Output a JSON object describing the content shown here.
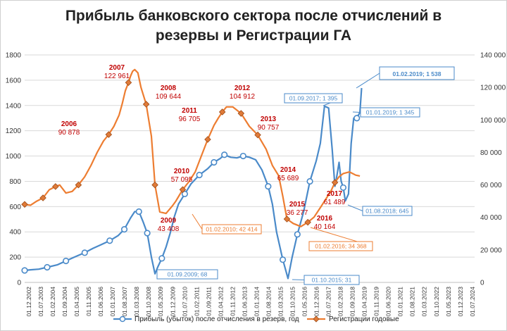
{
  "chart_data": {
    "type": "line",
    "title_line1": "Прибыль банковского сектора после отчислений в",
    "title_line2": "резервы и Регистрации ГА",
    "y_left": {
      "min": 0,
      "max": 1800,
      "step": 200,
      "ticks": [
        "0",
        "200",
        "400",
        "600",
        "800",
        "1000",
        "1200",
        "1400",
        "1600",
        "1800"
      ]
    },
    "y_right": {
      "min": 0,
      "max": 140000,
      "step": 20000,
      "ticks": [
        "0",
        "20 000",
        "40 000",
        "60 000",
        "80 000",
        "100 000",
        "120 000",
        "140 000"
      ]
    },
    "x_labels": [
      "01.12.2002",
      "01.07.2003",
      "01.02.2004",
      "01.09.2004",
      "01.04.2005",
      "01.11.2005",
      "01.06.2006",
      "01.01.2007",
      "01.08.2007",
      "01.03.2008",
      "01.10.2008",
      "01.05.2009",
      "01.12.2009",
      "01.07.2010",
      "01.02.2011",
      "01.09.2011",
      "01.04.2012",
      "01.11.2012",
      "01.06.2013",
      "01.01.2014",
      "01.08.2014",
      "01.03.2015",
      "01.10.2015",
      "01.05.2016",
      "01.12.2016",
      "01.07.2017",
      "01.02.2018",
      "01.09.2018",
      "01.04.2019",
      "01.11.2019",
      "01.06.2020",
      "01.01.2021",
      "01.08.2021",
      "01.03.2022",
      "01.10.2022",
      "01.05.2023",
      "01.12.2023",
      "01.07.2024"
    ],
    "x_range": [
      2002.92,
      2024.5
    ],
    "series": [
      {
        "name": "Прибыль (убыток) после отчисления в резерв, год",
        "axis": "left",
        "color": "#4a8ac9",
        "x": [
          2002.92,
          2003.2,
          2003.6,
          2004.0,
          2004.5,
          2004.9,
          2005.3,
          2005.8,
          2006.2,
          2006.6,
          2007.0,
          2007.4,
          2007.7,
          2008.0,
          2008.2,
          2008.4,
          2008.6,
          2008.8,
          2009.0,
          2009.17,
          2009.3,
          2009.5,
          2009.7,
          2009.9,
          2010.1,
          2010.3,
          2010.6,
          2010.9,
          2011.3,
          2011.7,
          2012.0,
          2012.3,
          2012.5,
          2012.8,
          2013.1,
          2013.4,
          2013.7,
          2014.0,
          2014.3,
          2014.6,
          2014.8,
          2015.0,
          2015.3,
          2015.55,
          2015.75,
          2016.0,
          2016.3,
          2016.6,
          2016.9,
          2017.1,
          2017.3,
          2017.5,
          2017.67,
          2017.8,
          2017.9,
          2018.0,
          2018.1,
          2018.2,
          2018.3,
          2018.45,
          2018.58,
          2018.7,
          2018.85,
          2019.0,
          2019.08
        ],
        "y": [
          95,
          100,
          105,
          120,
          140,
          170,
          200,
          235,
          270,
          300,
          330,
          370,
          420,
          510,
          560,
          560,
          480,
          390,
          200,
          68,
          120,
          190,
          280,
          390,
          520,
          620,
          700,
          780,
          850,
          900,
          950,
          980,
          1010,
          990,
          985,
          1000,
          990,
          970,
          890,
          760,
          620,
          400,
          180,
          31,
          200,
          380,
          560,
          800,
          960,
          1100,
          1395,
          1380,
          1050,
          760,
          850,
          950,
          800,
          750,
          645,
          700,
          1100,
          1300,
          1300,
          1345,
          1538
        ]
      },
      {
        "name": "Регистрации годовые",
        "axis": "right",
        "color": "#ed7d31",
        "x": [
          2002.92,
          2003.2,
          2003.5,
          2003.8,
          2004.1,
          2004.4,
          2004.6,
          2004.9,
          2005.2,
          2005.5,
          2005.8,
          2006.1,
          2006.4,
          2006.7,
          2006.95,
          2007.2,
          2007.45,
          2007.6,
          2007.75,
          2007.9,
          2008.0,
          2008.1,
          2008.2,
          2008.35,
          2008.5,
          2008.75,
          2009.0,
          2009.17,
          2009.4,
          2009.7,
          2010.0,
          2010.17,
          2010.5,
          2010.8,
          2011.1,
          2011.4,
          2011.7,
          2012.0,
          2012.2,
          2012.4,
          2012.6,
          2012.9,
          2013.3,
          2013.7,
          2014.1,
          2014.5,
          2014.8,
          2015.1,
          2015.3,
          2015.5,
          2015.8,
          2016.17,
          2016.5,
          2016.8,
          2017.1,
          2017.4,
          2017.6,
          2017.8,
          2018.0,
          2018.2,
          2018.5,
          2018.8,
          2019.0
        ],
        "y": [
          48000,
          47500,
          50000,
          52000,
          57000,
          59000,
          60000,
          55000,
          56000,
          60000,
          65000,
          72000,
          80000,
          87000,
          91000,
          96000,
          103000,
          110000,
          118000,
          123000,
          127000,
          130000,
          131000,
          129000,
          120000,
          109644,
          90000,
          60000,
          43408,
          42414,
          47000,
          50000,
          57095,
          62000,
          68000,
          78000,
          88000,
          96705,
          101000,
          104912,
          108000,
          108000,
          104000,
          96000,
          90757,
          82000,
          72000,
          65689,
          53000,
          39000,
          36277,
          34368,
          37000,
          40164,
          46000,
          52000,
          56000,
          61489,
          65000,
          67000,
          68000,
          66000,
          65500
        ]
      }
    ],
    "year_labels": [
      {
        "year": "2006",
        "value": "90 878",
        "x": 2005.4
      },
      {
        "year": "2007",
        "value": "122 961",
        "x": 2007.1
      },
      {
        "year": "2008",
        "value": "109 644",
        "x": 2009.0
      },
      {
        "year": "2009",
        "value": "43 408",
        "x": 2009.4
      },
      {
        "year": "2010",
        "value": "57 095",
        "x": 2010.1
      },
      {
        "year": "2011",
        "value": "96 705",
        "x": 2011.2
      },
      {
        "year": "2012",
        "value": "104 912",
        "x": 2013.5
      },
      {
        "year": "2013",
        "value": "90 757",
        "x": 2015.1
      },
      {
        "year": "2014",
        "value": "65 689",
        "x": 2016.2
      },
      {
        "year": "2015",
        "value": "36 277",
        "x": 2016.2
      },
      {
        "year": "2016",
        "value": "40 164",
        "x": 2017.4
      },
      {
        "year": "2017",
        "value": "61 489",
        "x": 2018.4
      }
    ],
    "callouts": [
      {
        "text": "01.09.2009; 68",
        "color": "#4a8ac9"
      },
      {
        "text": "01.02.2010; 42 414",
        "color": "#ed7d31"
      },
      {
        "text": "01.10.2015; 31",
        "color": "#4a8ac9"
      },
      {
        "text": "01.02.2016; 34 368",
        "color": "#ed7d31"
      },
      {
        "text": "01.09.2017; 1 395",
        "color": "#4a8ac9"
      },
      {
        "text": "01.08.2018; 645",
        "color": "#4a8ac9"
      },
      {
        "text": "01.01.2019; 1 345",
        "color": "#4a8ac9"
      },
      {
        "text": "01.02.2019; 1 538",
        "color": "#4a8ac9"
      }
    ],
    "legend": [
      "Прибыль (убыток) после отчисления в резерв, год",
      "Регистрации годовые"
    ],
    "grid": true
  }
}
